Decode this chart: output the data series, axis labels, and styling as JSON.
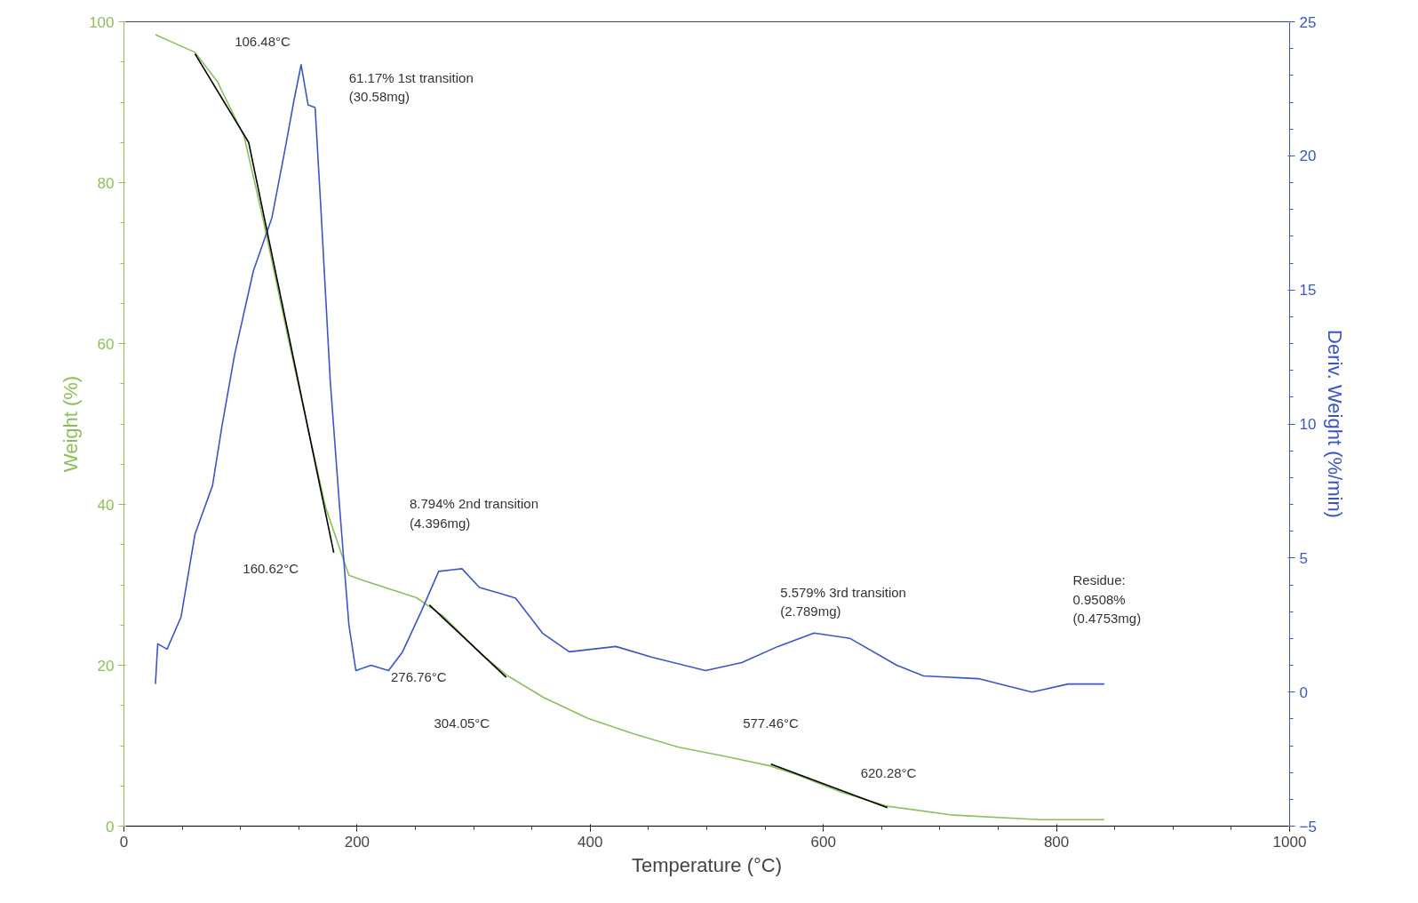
{
  "chart_data": {
    "type": "line",
    "xlabel": "Temperature (°C)",
    "ylabel": "Weight (%)",
    "y2label": "Deriv. Weight (%/min)",
    "xlim": [
      0,
      1000
    ],
    "xticks": [
      0,
      200,
      400,
      600,
      800,
      1000
    ],
    "ylim": [
      0,
      100
    ],
    "yticks": [
      0,
      20,
      40,
      60,
      80,
      100
    ],
    "y2lim": [
      -5,
      25
    ],
    "y2ticks": [
      -5,
      0,
      5,
      10,
      15,
      20,
      25
    ],
    "grid": false,
    "series": [
      {
        "color": "#8cc05a",
        "x": [
          27,
          61,
          80,
          103,
          119,
          142,
          173,
          193,
          204,
          251,
          274,
          305,
          328,
          360,
          398,
          437,
          476,
          515,
          554,
          577,
          616,
          654,
          709,
          786,
          841
        ],
        "values": [
          98.4,
          96.2,
          92.6,
          85.8,
          75.7,
          59.9,
          39.6,
          31.2,
          30.6,
          28.4,
          26.1,
          21.6,
          18.8,
          16.0,
          13.4,
          11.5,
          9.8,
          8.7,
          7.5,
          6.4,
          4.2,
          2.5,
          1.4,
          0.8,
          0.8
        ]
      },
      {
        "color": "#3a55c8",
        "axis": "y2",
        "x": [
          27,
          29,
          37,
          49,
          61,
          76,
          84,
          95,
          111,
          127,
          138,
          146,
          152,
          158,
          164,
          169,
          177,
          185,
          193,
          199,
          212,
          227,
          239,
          255,
          270,
          290,
          305,
          321,
          336,
          359,
          382,
          422,
          453,
          499,
          530,
          561,
          592,
          623,
          663,
          686,
          733,
          779,
          810,
          841
        ],
        "values": [
          0.3,
          1.8,
          1.6,
          2.8,
          5.9,
          7.7,
          9.9,
          12.6,
          15.7,
          17.7,
          20.2,
          22.1,
          23.4,
          21.9,
          21.8,
          18.0,
          11.6,
          6.9,
          2.5,
          0.8,
          1.0,
          0.8,
          1.5,
          3.0,
          4.5,
          4.6,
          3.9,
          3.7,
          3.5,
          2.2,
          1.5,
          1.7,
          1.3,
          0.8,
          1.1,
          1.7,
          2.2,
          2.0,
          1.0,
          0.6,
          0.5,
          0.0,
          0.3,
          0.3
        ]
      },
      {
        "color": "#000000",
        "x": [
          61,
          107,
          180
        ],
        "values": [
          96,
          85,
          34
        ]
      },
      {
        "color": "#000000",
        "x": [
          262,
          328
        ],
        "values": [
          27.5,
          18.5
        ]
      },
      {
        "color": "#000000",
        "x": [
          555,
          655
        ],
        "values": [
          7.7,
          2.3
        ]
      }
    ],
    "annotations": [
      "106.48°C",
      "61.17% 1st transition\n(30.58mg)",
      "160.62°C",
      "8.794% 2nd transition\n(4.396mg)",
      "276.76°C",
      "304.05°C",
      "577.46°C",
      "620.28°C",
      "5.579% 3rd transition\n(2.789mg)",
      "Residue:\n0.9508%\n(0.4753mg)"
    ]
  }
}
